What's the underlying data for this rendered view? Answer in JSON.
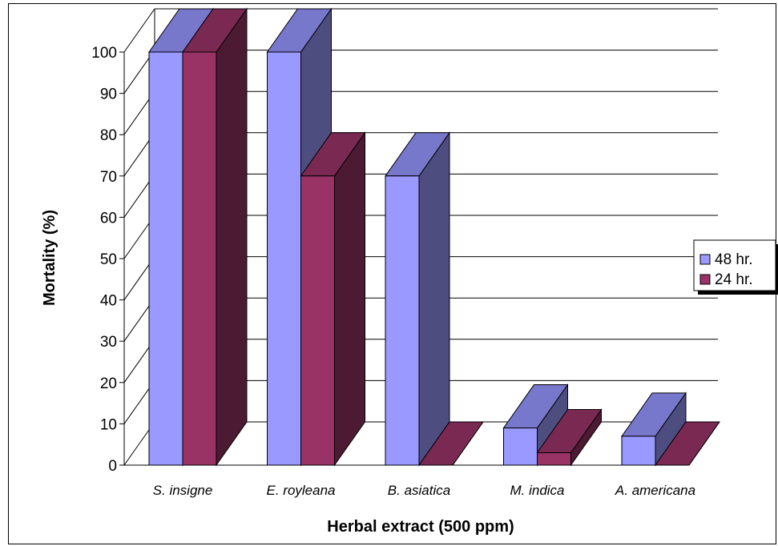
{
  "chart_data": {
    "type": "bar",
    "title": "",
    "xlabel": "Herbal extract (500 ppm)",
    "ylabel": "Mortality (%)",
    "ylim": [
      0,
      100
    ],
    "yticks": [
      0,
      10,
      20,
      30,
      40,
      50,
      60,
      70,
      80,
      90,
      100
    ],
    "categories": [
      "S. insigne",
      "E. royleana",
      "B. asiatica",
      "M. indica",
      "A. americana"
    ],
    "series": [
      {
        "name": "48 hr.",
        "values": [
          100,
          100,
          70,
          9,
          7
        ]
      },
      {
        "name": "24 hr.",
        "values": [
          100,
          70,
          0,
          3,
          0
        ]
      }
    ],
    "grid": true,
    "legend_position": "right",
    "style_3d": true,
    "colors": {
      "series_48": {
        "front": "#9999ff",
        "top": "#7777cc",
        "side": "#4d4d80"
      },
      "series_24": {
        "front": "#993366",
        "top": "#7a2952",
        "side": "#4d1a33"
      },
      "gridline": "#000000",
      "background": "#ffffff"
    }
  }
}
